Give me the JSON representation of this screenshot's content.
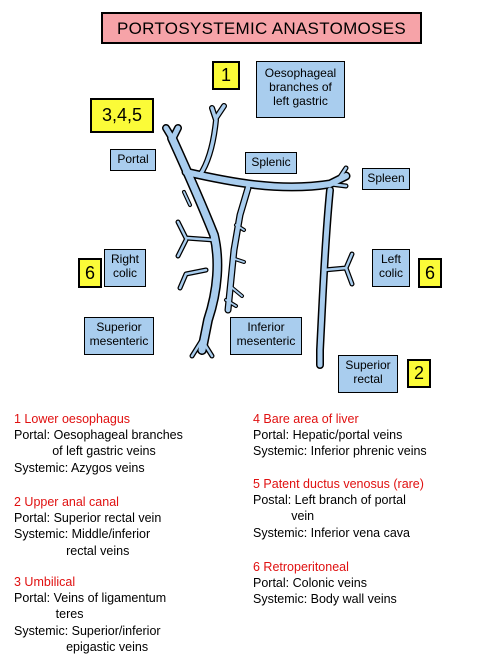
{
  "title": "PORTOSYSTEMIC ANASTOMOSES",
  "badges": {
    "b1": "1",
    "b345": "3,4,5",
    "b6_left": "6",
    "b6_right": "6",
    "b2": "2"
  },
  "labels": {
    "oesophageal_1": "Oesophageal",
    "oesophageal_2": "branches of",
    "oesophageal_3": "left gastric",
    "portal": "Portal",
    "splenic": "Splenic",
    "spleen": "Spleen",
    "right_colic_1": "Right",
    "right_colic_2": "colic",
    "left_colic_1": "Left",
    "left_colic_2": "colic",
    "sup_mes_1": "Superior",
    "sup_mes_2": "mesenteric",
    "inf_mes_1": "Inferior",
    "inf_mes_2": "mesenteric",
    "sup_rectal_1": "Superior",
    "sup_rectal_2": "rectal"
  },
  "colors": {
    "vein": "#a9cdee",
    "title_bg": "#f6a3a8",
    "badge_bg": "#fbfb38",
    "heading": "#e01010"
  },
  "sections": [
    {
      "heading": "1  Lower oesophagus",
      "lines": [
        "Portal: Oesophageal branches",
        "           of left gastric veins",
        "Systemic: Azygos veins"
      ]
    },
    {
      "heading": "2  Upper anal canal",
      "lines": [
        "Portal: Superior rectal vein",
        "Systemic: Middle/inferior",
        "               rectal veins"
      ]
    },
    {
      "heading": "3  Umbilical",
      "lines": [
        "Portal: Veins of ligamentum",
        "            teres",
        "Systemic: Superior/inferior",
        "               epigastic veins"
      ]
    },
    {
      "heading": "4  Bare area of liver",
      "lines": [
        "Portal: Hepatic/portal veins",
        "Systemic: Inferior phrenic veins"
      ]
    },
    {
      "heading": "5  Patent ductus venosus (rare)",
      "lines": [
        "Postal: Left branch of portal",
        "           vein",
        "Systemic: Inferior vena cava"
      ]
    },
    {
      "heading": "6  Retroperitoneal",
      "lines": [
        "Portal: Colonic veins",
        "Systemic: Body wall veins"
      ]
    }
  ]
}
